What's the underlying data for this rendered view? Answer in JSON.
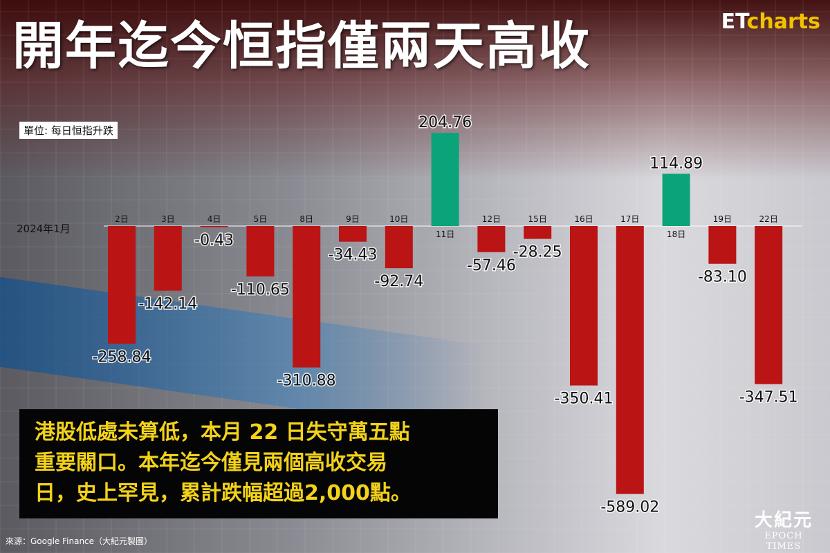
{
  "header": {
    "title": "開年迄今恒指僅兩天高收",
    "brand_prefix": "ET",
    "brand_suffix": "charts",
    "unit_label": "單位: 每日恒指升跌"
  },
  "chart_data": {
    "type": "bar",
    "period_label": "2024年1月",
    "categories": [
      "2日",
      "3日",
      "4日",
      "5日",
      "8日",
      "9日",
      "10日",
      "11日",
      "12日",
      "15日",
      "16日",
      "17日",
      "18日",
      "19日",
      "22日"
    ],
    "values": [
      -258.84,
      -142.14,
      -0.43,
      -110.65,
      -310.88,
      -34.43,
      -92.74,
      204.76,
      -57.46,
      -28.25,
      -350.41,
      -589.02,
      114.89,
      -83.1,
      -347.51
    ],
    "value_labels": [
      "-258.84",
      "-142.14",
      "-0.43",
      "-110.65",
      "-310.88",
      "-34.43",
      "-92.74",
      "204.76",
      "-57.46",
      "-28.25",
      "-350.41",
      "-589.02",
      "114.89",
      "-83.10",
      "-347.51"
    ],
    "colors": {
      "positive": "#0aa37a",
      "negative": "#bb1414"
    }
  },
  "note": {
    "lines": [
      "港股低處未算低，本月 22 日失守萬五點",
      "重要關口。本年迄今僅見兩個高收交易",
      "日，史上罕見，累計跌幅超過2,000點。"
    ]
  },
  "footer": {
    "source": "來源：Google Finance（大紀元製圖）",
    "logo_cn": "大紀元",
    "logo_en": "EPOCH TIMES"
  }
}
